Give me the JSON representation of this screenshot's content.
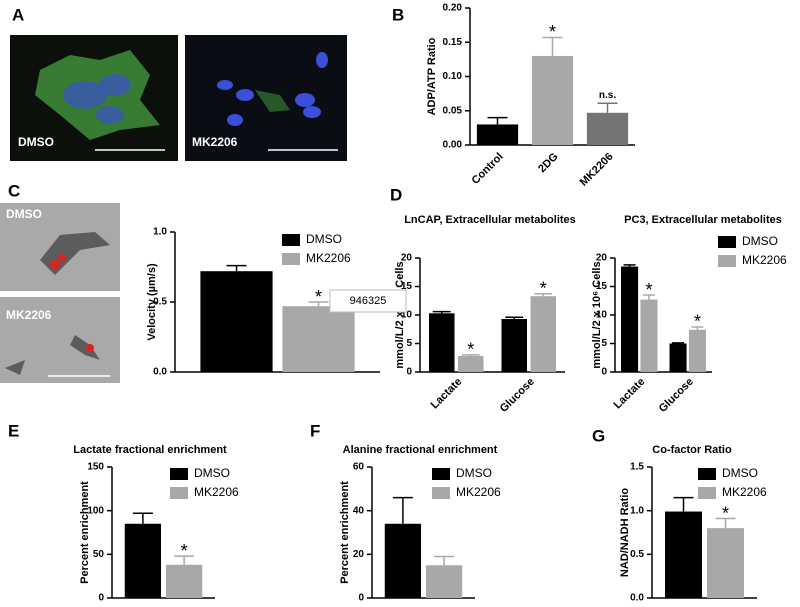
{
  "image_panels": [
    {
      "letter": "A",
      "labels": [
        "DMSO",
        "MK2206"
      ]
    },
    {
      "letter": "C",
      "labels": [
        "DMSO",
        "MK2206"
      ]
    }
  ],
  "overlay": "946325",
  "chart_data": [
    {
      "type": "bar",
      "panel": "B",
      "ylabel": "ADP/ATP Ratio",
      "categories": [
        "Control",
        "2DG",
        "MK2206"
      ],
      "values": [
        0.03,
        0.13,
        0.047
      ],
      "errors": [
        0.01,
        0.027,
        0.014
      ],
      "colors": [
        "#000000",
        "#a8a8a8",
        "#747474"
      ],
      "annotations": [
        null,
        "*",
        "n.s."
      ],
      "ylim": [
        0,
        0.2
      ],
      "yticks": [
        {
          "value": 0,
          "label": "0.00"
        },
        0.05,
        {
          "value": 0.1,
          "label": "0.10"
        },
        0.15,
        {
          "value": 0.2,
          "label": "0.20"
        }
      ]
    },
    {
      "type": "bar",
      "ylabel": "Velocity (µm/s)",
      "series": [
        {
          "name": "DMSO",
          "color": "#000000",
          "values": [
            0.72
          ],
          "errors": [
            0.04
          ]
        },
        {
          "name": "MK2206",
          "color": "#a8a8a8",
          "values": [
            0.47
          ],
          "errors": [
            0.03
          ],
          "annotations": [
            "*"
          ]
        }
      ],
      "ylim": [
        0,
        1
      ],
      "yticks": [
        {
          "value": 0,
          "label": "0.0"
        },
        0.5,
        {
          "value": 1,
          "label": "1.0"
        }
      ],
      "legend": true
    },
    {
      "type": "bar",
      "panel": "D",
      "title": "LnCAP, Extracellular metabolites",
      "ylabel": "mmol/L/2 x 10⁶ Cells",
      "categories": [
        "Lactate",
        "Glucose"
      ],
      "series": [
        {
          "name": "DMSO",
          "color": "#000000",
          "values": [
            10.3,
            9.3
          ],
          "errors": [
            0.3,
            0.3
          ]
        },
        {
          "name": "MK2206",
          "color": "#a8a8a8",
          "values": [
            2.8,
            13.3
          ],
          "errors": [
            0.2,
            0.4
          ],
          "annotations": [
            "*",
            "*"
          ]
        }
      ],
      "ylim": [
        0,
        20
      ],
      "yticks": [
        0,
        5,
        10,
        15,
        20
      ],
      "legend": false
    },
    {
      "type": "bar",
      "title": "PC3, Extracellular metabolites",
      "ylabel": "mmol/L/2 x 10⁶ Cells",
      "categories": [
        "Lactate",
        "Glucose"
      ],
      "series": [
        {
          "name": "DMSO",
          "color": "#000000",
          "values": [
            18.5,
            5.0
          ],
          "errors": [
            0.3,
            0.1
          ]
        },
        {
          "name": "MK2206",
          "color": "#a8a8a8",
          "values": [
            12.7,
            7.4
          ],
          "errors": [
            0.8,
            0.5
          ],
          "annotations": [
            "*",
            "*"
          ]
        }
      ],
      "ylim": [
        0,
        20
      ],
      "yticks": [
        0,
        5,
        10,
        15,
        20
      ],
      "legend": true
    },
    {
      "type": "bar",
      "panel": "E",
      "title": "Lactate fractional enrichment",
      "ylabel": "Percent enrichment",
      "series": [
        {
          "name": "DMSO",
          "color": "#000000",
          "values": [
            85
          ],
          "errors": [
            12
          ]
        },
        {
          "name": "MK2206",
          "color": "#a8a8a8",
          "values": [
            38
          ],
          "errors": [
            10
          ],
          "annotations": [
            "*"
          ]
        }
      ],
      "ylim": [
        0,
        150
      ],
      "yticks": [
        0,
        50,
        100,
        150
      ],
      "legend": true
    },
    {
      "type": "bar",
      "panel": "F",
      "title": "Alanine fractional enrichment",
      "ylabel": "Percent enrichment",
      "series": [
        {
          "name": "DMSO",
          "color": "#000000",
          "values": [
            34
          ],
          "errors": [
            12
          ]
        },
        {
          "name": "MK2206",
          "color": "#a8a8a8",
          "values": [
            15
          ],
          "errors": [
            4
          ]
        }
      ],
      "ylim": [
        0,
        60
      ],
      "yticks": [
        0,
        20,
        40,
        60
      ],
      "legend": true
    },
    {
      "type": "bar",
      "panel": "G",
      "title": "Co-factor Ratio",
      "ylabel": "NAD/NADH Ratio",
      "series": [
        {
          "name": "DMSO",
          "color": "#000000",
          "values": [
            0.99
          ],
          "errors": [
            0.16
          ]
        },
        {
          "name": "MK2206",
          "color": "#a8a8a8",
          "values": [
            0.8
          ],
          "errors": [
            0.11
          ],
          "annotations": [
            "*"
          ]
        }
      ],
      "ylim": [
        0,
        1.5
      ],
      "yticks": [
        {
          "value": 0,
          "label": "0.0"
        },
        0.5,
        {
          "value": 1,
          "label": "1.0"
        },
        1.5
      ],
      "legend": true
    }
  ]
}
